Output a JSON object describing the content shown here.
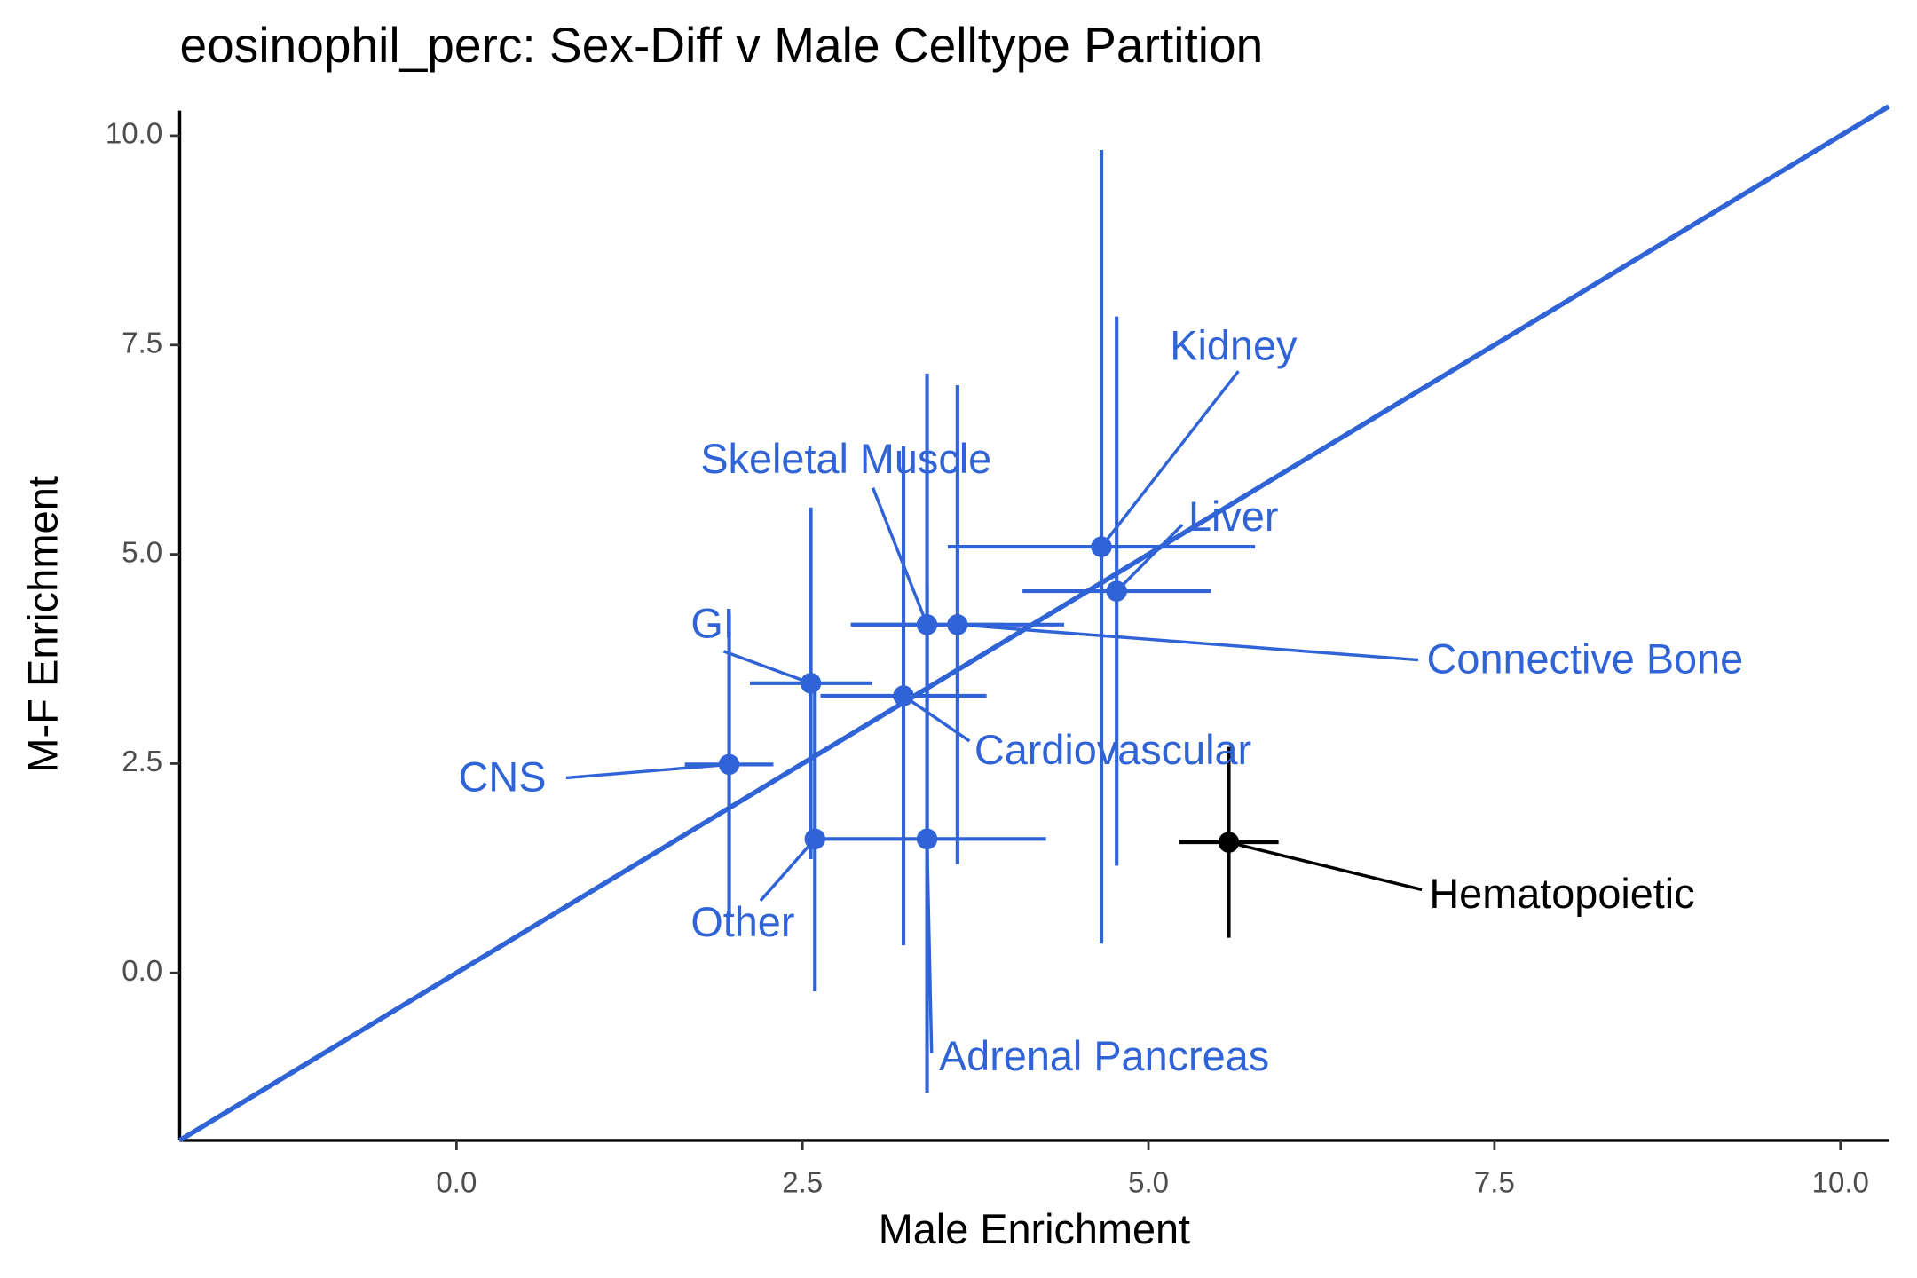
{
  "chart_data": {
    "type": "scatter",
    "title": "eosinophil_perc: Sex-Diff v Male Celltype Partition",
    "xlabel": "Male Enrichment",
    "ylabel": "M-F Enrichment",
    "xlim": [
      -2.0,
      10.35
    ],
    "ylim": [
      -2.0,
      10.3
    ],
    "xticks": [
      {
        "value": 0,
        "label": "0.0"
      },
      {
        "value": 2.5,
        "label": "2.5"
      },
      {
        "value": 5,
        "label": "5.0"
      },
      {
        "value": 7.5,
        "label": "7.5"
      },
      {
        "value": 10,
        "label": "10.0"
      }
    ],
    "yticks": [
      {
        "value": 0,
        "label": "0.0"
      },
      {
        "value": 2.5,
        "label": "2.5"
      },
      {
        "value": 5,
        "label": "5.0"
      },
      {
        "value": 7.5,
        "label": "7.5"
      },
      {
        "value": 10,
        "label": "10.0"
      }
    ],
    "reference_color": "#2f63d6",
    "series": [
      {
        "name": "CNS",
        "color": "#2f63d6",
        "x": [
          1.97
        ],
        "values": [
          2.49
        ],
        "xerr": [
          0.32
        ],
        "yerr": [
          1.8
        ]
      },
      {
        "name": "GI",
        "color": "#2f63d6",
        "x": [
          2.56
        ],
        "values": [
          3.46
        ],
        "xerr": [
          0.44
        ],
        "yerr": [
          2.1
        ]
      },
      {
        "name": "Other",
        "color": "#2f63d6",
        "x": [
          2.59
        ],
        "values": [
          1.6
        ],
        "xerr": [
          0.0
        ],
        "yerr": [
          1.82
        ]
      },
      {
        "name": "Adrenal Pancreas",
        "color": "#2f63d6",
        "x": [
          3.4
        ],
        "values": [
          1.6
        ],
        "xerr": [
          0.86
        ],
        "yerr": [
          3.03
        ]
      },
      {
        "name": "Skeletal Muscle",
        "color": "#2f63d6",
        "x": [
          3.4
        ],
        "values": [
          4.16
        ],
        "xerr": [
          0.55
        ],
        "yerr": [
          3.0
        ]
      },
      {
        "name": "Connective Bone",
        "color": "#2f63d6",
        "x": [
          3.62
        ],
        "values": [
          4.16
        ],
        "xerr": [
          0.77
        ],
        "yerr": [
          2.86
        ]
      },
      {
        "name": "Cardiovascular",
        "color": "#2f63d6",
        "x": [
          3.23
        ],
        "values": [
          3.31
        ],
        "xerr": [
          0.6
        ],
        "yerr": [
          2.98
        ]
      },
      {
        "name": "Kidney",
        "color": "#2f63d6",
        "x": [
          4.66
        ],
        "values": [
          5.09
        ],
        "xerr": [
          1.11
        ],
        "yerr": [
          4.74
        ]
      },
      {
        "name": "Liver",
        "color": "#2f63d6",
        "x": [
          4.77
        ],
        "values": [
          4.56
        ],
        "xerr": [
          0.68
        ],
        "yerr": [
          3.28
        ]
      },
      {
        "name": "Hematopoietic",
        "color": "#000000",
        "x": [
          5.58
        ],
        "values": [
          1.56
        ],
        "xerr": [
          0.36
        ],
        "yerr": [
          1.14
        ]
      }
    ]
  }
}
